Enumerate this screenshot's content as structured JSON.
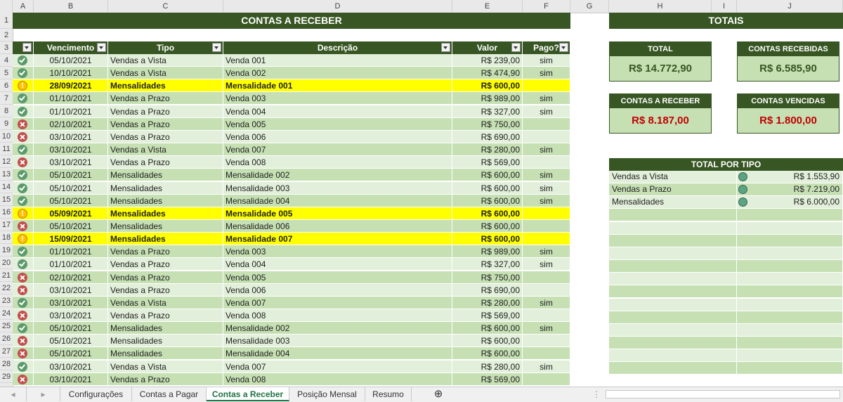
{
  "columns": [
    "A",
    "B",
    "C",
    "D",
    "E",
    "F",
    "G",
    "H",
    "I",
    "J"
  ],
  "row_numbers": [
    "1",
    "2",
    "3",
    "4",
    "5",
    "6",
    "7",
    "8",
    "9",
    "10",
    "11",
    "12",
    "13",
    "14",
    "15",
    "16",
    "17",
    "18",
    "19",
    "20",
    "21",
    "22",
    "23",
    "24",
    "25",
    "26",
    "27",
    "28",
    "29"
  ],
  "title": "CONTAS A RECEBER",
  "headers": [
    "Vencimento",
    "Tipo",
    "Descrição",
    "Valor",
    "Pago?"
  ],
  "rows": [
    {
      "status": "ok",
      "vencimento": "05/10/2021",
      "tipo": "Vendas a Vista",
      "descricao": "Venda 001",
      "valor": "R$ 239,00",
      "pago": "sim"
    },
    {
      "status": "ok",
      "vencimento": "10/10/2021",
      "tipo": "Vendas a Vista",
      "descricao": "Venda 002",
      "valor": "R$ 474,90",
      "pago": "sim"
    },
    {
      "status": "warn",
      "vencimento": "28/09/2021",
      "tipo": "Mensalidades",
      "descricao": "Mensalidade 001",
      "valor": "R$ 600,00",
      "pago": ""
    },
    {
      "status": "ok",
      "vencimento": "01/10/2021",
      "tipo": "Vendas a Prazo",
      "descricao": "Venda 003",
      "valor": "R$ 989,00",
      "pago": "sim"
    },
    {
      "status": "ok",
      "vencimento": "01/10/2021",
      "tipo": "Vendas a Prazo",
      "descricao": "Venda 004",
      "valor": "R$ 327,00",
      "pago": "sim"
    },
    {
      "status": "bad",
      "vencimento": "02/10/2021",
      "tipo": "Vendas a Prazo",
      "descricao": "Venda 005",
      "valor": "R$ 750,00",
      "pago": ""
    },
    {
      "status": "bad",
      "vencimento": "03/10/2021",
      "tipo": "Vendas a Prazo",
      "descricao": "Venda 006",
      "valor": "R$ 690,00",
      "pago": ""
    },
    {
      "status": "ok",
      "vencimento": "03/10/2021",
      "tipo": "Vendas a Vista",
      "descricao": "Venda 007",
      "valor": "R$ 280,00",
      "pago": "sim"
    },
    {
      "status": "bad",
      "vencimento": "03/10/2021",
      "tipo": "Vendas a Prazo",
      "descricao": "Venda 008",
      "valor": "R$ 569,00",
      "pago": ""
    },
    {
      "status": "ok",
      "vencimento": "05/10/2021",
      "tipo": "Mensalidades",
      "descricao": "Mensalidade 002",
      "valor": "R$ 600,00",
      "pago": "sim"
    },
    {
      "status": "ok",
      "vencimento": "05/10/2021",
      "tipo": "Mensalidades",
      "descricao": "Mensalidade 003",
      "valor": "R$ 600,00",
      "pago": "sim"
    },
    {
      "status": "ok",
      "vencimento": "05/10/2021",
      "tipo": "Mensalidades",
      "descricao": "Mensalidade 004",
      "valor": "R$ 600,00",
      "pago": "sim"
    },
    {
      "status": "warn",
      "vencimento": "05/09/2021",
      "tipo": "Mensalidades",
      "descricao": "Mensalidade 005",
      "valor": "R$ 600,00",
      "pago": ""
    },
    {
      "status": "bad",
      "vencimento": "05/10/2021",
      "tipo": "Mensalidades",
      "descricao": "Mensalidade 006",
      "valor": "R$ 600,00",
      "pago": ""
    },
    {
      "status": "warn",
      "vencimento": "15/09/2021",
      "tipo": "Mensalidades",
      "descricao": "Mensalidade 007",
      "valor": "R$ 600,00",
      "pago": ""
    },
    {
      "status": "ok",
      "vencimento": "01/10/2021",
      "tipo": "Vendas a Prazo",
      "descricao": "Venda 003",
      "valor": "R$ 989,00",
      "pago": "sim"
    },
    {
      "status": "ok",
      "vencimento": "01/10/2021",
      "tipo": "Vendas a Prazo",
      "descricao": "Venda 004",
      "valor": "R$ 327,00",
      "pago": "sim"
    },
    {
      "status": "bad",
      "vencimento": "02/10/2021",
      "tipo": "Vendas a Prazo",
      "descricao": "Venda 005",
      "valor": "R$ 750,00",
      "pago": ""
    },
    {
      "status": "bad",
      "vencimento": "03/10/2021",
      "tipo": "Vendas a Prazo",
      "descricao": "Venda 006",
      "valor": "R$ 690,00",
      "pago": ""
    },
    {
      "status": "ok",
      "vencimento": "03/10/2021",
      "tipo": "Vendas a Vista",
      "descricao": "Venda 007",
      "valor": "R$ 280,00",
      "pago": "sim"
    },
    {
      "status": "bad",
      "vencimento": "03/10/2021",
      "tipo": "Vendas a Prazo",
      "descricao": "Venda 008",
      "valor": "R$ 569,00",
      "pago": ""
    },
    {
      "status": "ok",
      "vencimento": "05/10/2021",
      "tipo": "Mensalidades",
      "descricao": "Mensalidade 002",
      "valor": "R$ 600,00",
      "pago": "sim"
    },
    {
      "status": "bad",
      "vencimento": "05/10/2021",
      "tipo": "Mensalidades",
      "descricao": "Mensalidade 003",
      "valor": "R$ 600,00",
      "pago": ""
    },
    {
      "status": "bad",
      "vencimento": "05/10/2021",
      "tipo": "Mensalidades",
      "descricao": "Mensalidade 004",
      "valor": "R$ 600,00",
      "pago": ""
    },
    {
      "status": "ok",
      "vencimento": "03/10/2021",
      "tipo": "Vendas a Vista",
      "descricao": "Venda 007",
      "valor": "R$ 280,00",
      "pago": "sim"
    },
    {
      "status": "bad",
      "vencimento": "03/10/2021",
      "tipo": "Vendas a Prazo",
      "descricao": "Venda 008",
      "valor": "R$ 569,00",
      "pago": ""
    }
  ],
  "totais": {
    "title": "TOTAIS",
    "total_label": "TOTAL",
    "total_value": "R$ 14.772,90",
    "recebidas_label": "CONTAS RECEBIDAS",
    "recebidas_value": "R$ 6.585,90",
    "receber_label": "CONTAS A RECEBER",
    "receber_value": "R$ 8.187,00",
    "vencidas_label": "CONTAS VENCIDAS",
    "vencidas_value": "R$ 1.800,00"
  },
  "por_tipo": {
    "title": "TOTAL POR TIPO",
    "items": [
      {
        "tipo": "Vendas a Vista",
        "valor": "R$ 1.553,90"
      },
      {
        "tipo": "Vendas a Prazo",
        "valor": "R$ 7.219,00"
      },
      {
        "tipo": "Mensalidades",
        "valor": "R$ 6.000,00"
      }
    ]
  },
  "sheet_tabs": [
    "Configurações",
    "Contas a Pagar",
    "Contas a Receber",
    "Posição Mensal",
    "Resumo"
  ],
  "active_tab": "Contas a Receber",
  "colors": {
    "dark_green": "#375623",
    "light_green": "#e2efda",
    "mid_green": "#c6e0b4",
    "highlight": "#ffff00",
    "red": "#c00000"
  }
}
